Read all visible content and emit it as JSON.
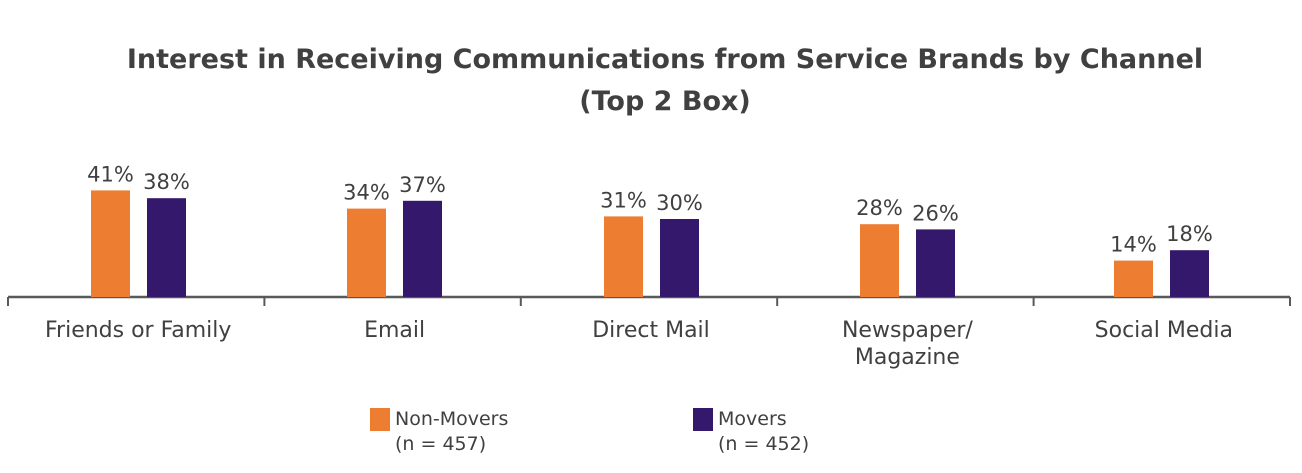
{
  "chart_data": {
    "type": "bar",
    "title": "Interest in Receiving Communications from Service Brands by Channel",
    "subtitle": "(Top 2 Box)",
    "categories": [
      [
        "Friends or Family"
      ],
      [
        "Email"
      ],
      [
        "Direct Mail"
      ],
      [
        "Newspaper/",
        "Magazine"
      ],
      [
        "Social Media"
      ]
    ],
    "series": [
      {
        "name": "Non-Movers",
        "note": "(n = 457)",
        "color": "#ED7D31",
        "values": [
          41,
          34,
          31,
          28,
          14
        ]
      },
      {
        "name": "Movers",
        "note": "(n = 452)",
        "color": "#33186B",
        "values": [
          38,
          37,
          30,
          26,
          18
        ]
      }
    ],
    "value_format": "%",
    "ylim": [
      0,
      50
    ],
    "grid": false,
    "legend_position": "bottom"
  }
}
